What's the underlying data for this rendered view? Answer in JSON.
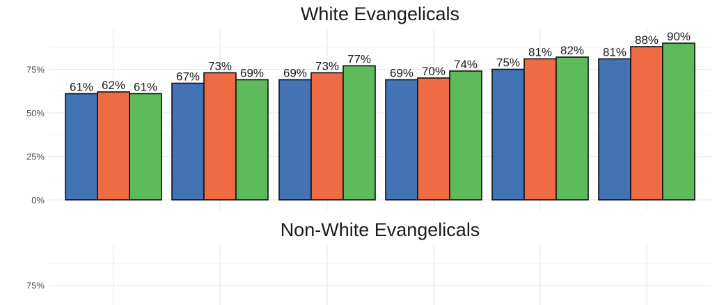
{
  "chart_data": [
    {
      "type": "bar",
      "title": "White Evangelicals",
      "ylim": [
        0,
        0.95
      ],
      "yticks": [
        "0%",
        "25%",
        "50%",
        "75%"
      ],
      "grid": true,
      "legend": "none",
      "colors": [
        "#4372b5",
        "#ef6b44",
        "#5dbb5c"
      ],
      "groups": [
        {
          "values": [
            0.61,
            0.62,
            0.61
          ],
          "labels": [
            "61%",
            "62%",
            "61%"
          ]
        },
        {
          "values": [
            0.67,
            0.73,
            0.69
          ],
          "labels": [
            "67%",
            "73%",
            "69%"
          ]
        },
        {
          "values": [
            0.69,
            0.73,
            0.77
          ],
          "labels": [
            "69%",
            "73%",
            "77%"
          ]
        },
        {
          "values": [
            0.69,
            0.7,
            0.74
          ],
          "labels": [
            "69%",
            "70%",
            "74%"
          ]
        },
        {
          "values": [
            0.75,
            0.81,
            0.82
          ],
          "labels": [
            "75%",
            "81%",
            "82%"
          ]
        },
        {
          "values": [
            0.81,
            0.88,
            0.9
          ],
          "labels": [
            "81%",
            "88%",
            "90%"
          ]
        }
      ]
    },
    {
      "type": "bar",
      "title": "Non-White Evangelicals",
      "ylim": [
        0,
        0.95
      ],
      "yticks": [
        "75%"
      ],
      "grid": true,
      "legend": "none",
      "groups": []
    }
  ]
}
